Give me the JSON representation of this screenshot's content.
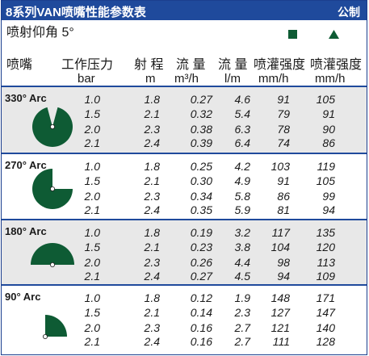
{
  "title": "8系列VAN喷嘴性能参数表",
  "unit_system": "公制",
  "trajectory_label": "喷射仰角 5°",
  "legend": {
    "square_color": "#0e5b34",
    "triangle_color": "#0e5b34"
  },
  "headers": {
    "nozzle": "喷嘴",
    "pressure": "工作压力",
    "pressure_unit": "bar",
    "radius": "射 程",
    "radius_unit": "m",
    "flow_m3h": "流 量",
    "flow_m3h_unit": "m³/h",
    "flow_lm": "流 量",
    "flow_lm_unit": "l/m",
    "precip_square": "喷灌强度",
    "precip_square_unit": "mm/h",
    "precip_triangle": "喷灌强度",
    "precip_triangle_unit": "mm/h"
  },
  "sections": [
    {
      "label": "330° Arc",
      "arc": 330,
      "rows": [
        {
          "pressure": "1.0",
          "radius": "1.8",
          "flow_m3h": "0.27",
          "flow_lm": "4.6",
          "precip_sq": "91",
          "precip_tri": "105"
        },
        {
          "pressure": "1.5",
          "radius": "2.1",
          "flow_m3h": "0.32",
          "flow_lm": "5.4",
          "precip_sq": "79",
          "precip_tri": "91"
        },
        {
          "pressure": "2.0",
          "radius": "2.3",
          "flow_m3h": "0.38",
          "flow_lm": "6.3",
          "precip_sq": "78",
          "precip_tri": "90"
        },
        {
          "pressure": "2.1",
          "radius": "2.4",
          "flow_m3h": "0.39",
          "flow_lm": "6.4",
          "precip_sq": "74",
          "precip_tri": "86"
        }
      ]
    },
    {
      "label": "270° Arc",
      "arc": 270,
      "rows": [
        {
          "pressure": "1.0",
          "radius": "1.8",
          "flow_m3h": "0.25",
          "flow_lm": "4.2",
          "precip_sq": "103",
          "precip_tri": "119"
        },
        {
          "pressure": "1.5",
          "radius": "2.1",
          "flow_m3h": "0.30",
          "flow_lm": "4.9",
          "precip_sq": "91",
          "precip_tri": "105"
        },
        {
          "pressure": "2.0",
          "radius": "2.3",
          "flow_m3h": "0.34",
          "flow_lm": "5.8",
          "precip_sq": "86",
          "precip_tri": "99"
        },
        {
          "pressure": "2.1",
          "radius": "2.4",
          "flow_m3h": "0.35",
          "flow_lm": "5.9",
          "precip_sq": "81",
          "precip_tri": "94"
        }
      ]
    },
    {
      "label": "180° Arc",
      "arc": 180,
      "rows": [
        {
          "pressure": "1.0",
          "radius": "1.8",
          "flow_m3h": "0.19",
          "flow_lm": "3.2",
          "precip_sq": "117",
          "precip_tri": "135"
        },
        {
          "pressure": "1.5",
          "radius": "2.1",
          "flow_m3h": "0.23",
          "flow_lm": "3.8",
          "precip_sq": "104",
          "precip_tri": "120"
        },
        {
          "pressure": "2.0",
          "radius": "2.3",
          "flow_m3h": "0.26",
          "flow_lm": "4.4",
          "precip_sq": "98",
          "precip_tri": "113"
        },
        {
          "pressure": "2.1",
          "radius": "2.4",
          "flow_m3h": "0.27",
          "flow_lm": "4.5",
          "precip_sq": "94",
          "precip_tri": "109"
        }
      ]
    },
    {
      "label": "90° Arc",
      "arc": 90,
      "rows": [
        {
          "pressure": "1.0",
          "radius": "1.8",
          "flow_m3h": "0.12",
          "flow_lm": "1.9",
          "precip_sq": "148",
          "precip_tri": "171"
        },
        {
          "pressure": "1.5",
          "radius": "2.1",
          "flow_m3h": "0.14",
          "flow_lm": "2.3",
          "precip_sq": "127",
          "precip_tri": "147"
        },
        {
          "pressure": "2.0",
          "radius": "2.3",
          "flow_m3h": "0.16",
          "flow_lm": "2.7",
          "precip_sq": "121",
          "precip_tri": "140"
        },
        {
          "pressure": "2.1",
          "radius": "2.4",
          "flow_m3h": "0.16",
          "flow_lm": "2.7",
          "precip_sq": "111",
          "precip_tri": "128"
        }
      ]
    }
  ]
}
